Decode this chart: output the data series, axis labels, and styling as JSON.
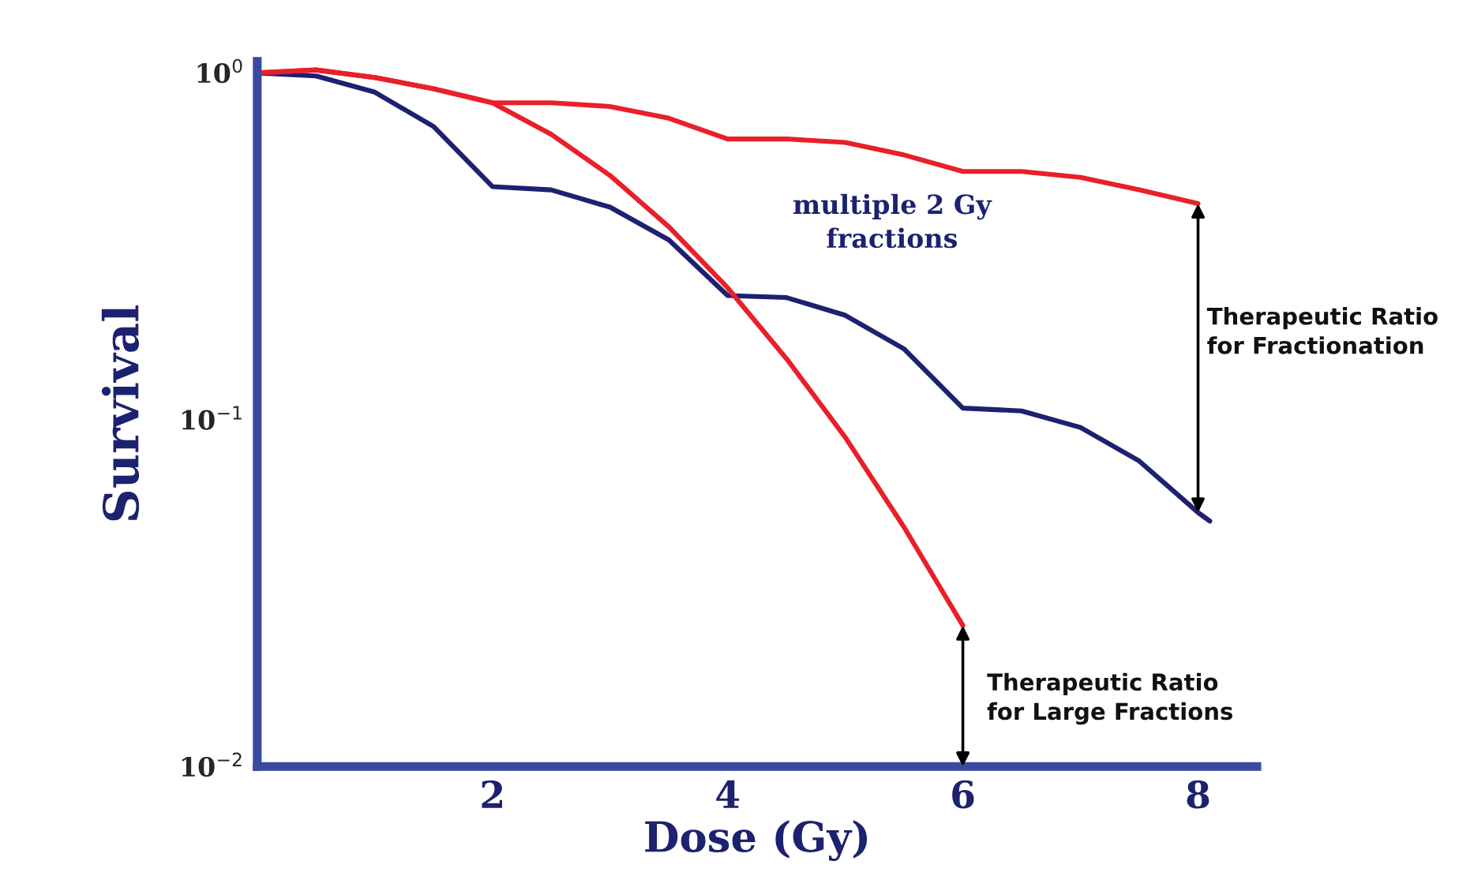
{
  "chart_data": {
    "type": "line",
    "xlabel": "Dose (Gy)",
    "ylabel": "Survival",
    "log": "y",
    "xlim": [
      0,
      8.5
    ],
    "xticks": [
      2,
      4,
      6,
      8
    ],
    "ylim": [
      0.01,
      1.08
    ],
    "yticks": [
      {
        "value": 1,
        "label": "10$^{0}$"
      },
      {
        "value": 0.1,
        "label": "10$^{−1}$"
      },
      {
        "value": 0.01,
        "label": "10$^{−2}$"
      }
    ],
    "grid": false,
    "legend": false,
    "marker": "none",
    "line_style": "solid",
    "series": [
      {
        "color": "#1c2170",
        "x": [
          0,
          0.5,
          1,
          1.5,
          2,
          2.5,
          3,
          3.5,
          4,
          4.5,
          5,
          5.5,
          6,
          6.5,
          7,
          7.5,
          8,
          8.1
        ],
        "values": [
          1.0,
          0.98,
          0.88,
          0.7,
          0.47,
          0.46,
          0.41,
          0.33,
          0.228,
          0.225,
          0.2,
          0.16,
          0.108,
          0.106,
          0.095,
          0.076,
          0.054,
          0.051
        ]
      },
      {
        "color": "#e8202a",
        "x": [
          0,
          0.5,
          1,
          1.5,
          2,
          2.5,
          3,
          3.5,
          4,
          4.5,
          5,
          5.5,
          6,
          6.5,
          7,
          7.5,
          8
        ],
        "values": [
          1.0,
          1.02,
          0.97,
          0.9,
          0.82,
          0.82,
          0.8,
          0.74,
          0.645,
          0.645,
          0.63,
          0.58,
          0.52,
          0.52,
          0.5,
          0.46,
          0.42
        ]
      },
      {
        "color": "#e8202a",
        "x": [
          0,
          0.5,
          1,
          1.5,
          2,
          2.5,
          3,
          3.5,
          4,
          4.5,
          5,
          5.5,
          6
        ],
        "values": [
          1.0,
          1.02,
          0.97,
          0.9,
          0.82,
          0.665,
          0.506,
          0.36,
          0.24,
          0.15,
          0.089,
          0.049,
          0.0255
        ]
      }
    ],
    "annotations": [
      "multiple 2 Gy\nfractions",
      "Therapeutic Ratio\nfor Fractionation",
      "Therapeutic Ratio\nfor Large Fractions"
    ]
  }
}
